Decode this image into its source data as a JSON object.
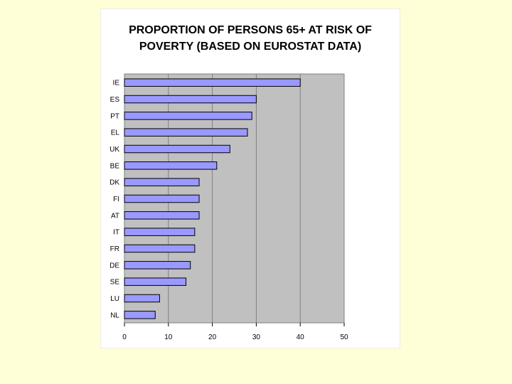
{
  "chart_data": {
    "type": "bar",
    "orientation": "horizontal",
    "title": "PROPORTION OF PERSONS 65+ AT RISK OF POVERTY (BASED ON EUROSTAT DATA)",
    "categories": [
      "IE",
      "ES",
      "PT",
      "EL",
      "UK",
      "BE",
      "DK",
      "FI",
      "AT",
      "IT",
      "FR",
      "DE",
      "SE",
      "LU",
      "NL"
    ],
    "values": [
      40,
      30,
      29,
      28,
      24,
      21,
      17,
      17,
      17,
      16,
      16,
      15,
      14,
      8,
      7
    ],
    "xlim": [
      0,
      50
    ],
    "xticks": [
      0,
      10,
      20,
      30,
      40,
      50
    ],
    "xlabel": "",
    "ylabel": "",
    "grid": true,
    "legend": "none",
    "colors": {
      "bar": "#9999ff",
      "plot_background": "#c0c0c0",
      "gridline": "#808080",
      "page_background": "#ffffd7"
    }
  }
}
